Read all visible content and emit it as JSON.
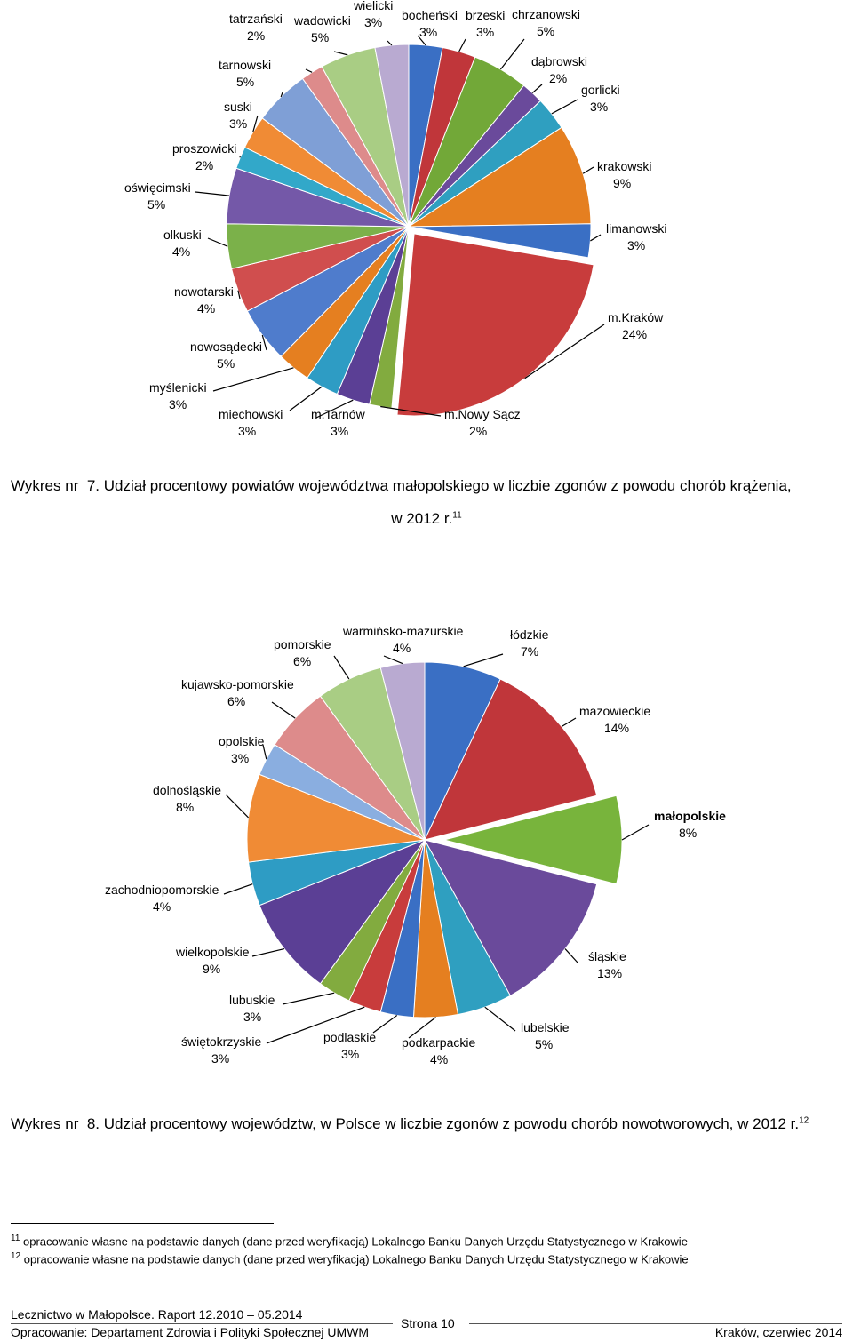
{
  "chart_data": [
    {
      "type": "pie",
      "categories": [
        "bocheński",
        "brzeski",
        "chrzanowski",
        "dąbrowski",
        "gorlicki",
        "krakowski",
        "limanowski",
        "m.Kraków",
        "m.Nowy Sącz",
        "m.Tarnów",
        "miechowski",
        "myślenicki",
        "nowosądecki",
        "nowotarski",
        "olkuski",
        "oświęcimski",
        "proszowicki",
        "suski",
        "tarnowski",
        "tatrzański",
        "wadowicki",
        "wielicki"
      ],
      "values": [
        3,
        3,
        5,
        2,
        3,
        9,
        3,
        24,
        2,
        3,
        3,
        3,
        5,
        4,
        4,
        5,
        2,
        3,
        5,
        2,
        5,
        3
      ],
      "value_labels": [
        "3%",
        "3%",
        "5%",
        "2%",
        "3%",
        "9%",
        "3%",
        "24%",
        "2%",
        "3%",
        "3%",
        "3%",
        "5%",
        "4%",
        "4%",
        "5%",
        "2%",
        "3%",
        "5%",
        "2%",
        "5%",
        "3%"
      ],
      "colors": [
        "#3a6fc4",
        "#c0363a",
        "#72a838",
        "#6a4a9b",
        "#2f9fc0",
        "#e57f20",
        "#3a6fc4",
        "#c83c3c",
        "#82ab3f",
        "#5b3f95",
        "#2e9cc4",
        "#e57f20",
        "#4f7ccc",
        "#d04e4e",
        "#7bb14a",
        "#7458a8",
        "#32a8c9",
        "#f08b35",
        "#7f9fd6",
        "#dd8b8b",
        "#a9cd84",
        "#b9aad1"
      ]
    },
    {
      "type": "pie",
      "categories": [
        "łódzkie",
        "mazowieckie",
        "małopolskie",
        "śląskie",
        "lubelskie",
        "podkarpackie",
        "podlaskie",
        "świętokrzyskie",
        "lubuskie",
        "wielkopolskie",
        "zachodniopomorskie",
        "dolnośląskie",
        "opolskie",
        "kujawsko-pomorskie",
        "pomorskie",
        "warmińsko-mazurskie"
      ],
      "values": [
        7,
        14,
        8,
        13,
        5,
        4,
        3,
        3,
        3,
        9,
        4,
        8,
        3,
        6,
        6,
        4
      ],
      "value_labels": [
        "7%",
        "14%",
        "8%",
        "13%",
        "5%",
        "4%",
        "3%",
        "3%",
        "3%",
        "9%",
        "4%",
        "8%",
        "3%",
        "6%",
        "6%",
        "4%"
      ],
      "colors": [
        "#3a6fc4",
        "#c0363a",
        "#78b43c",
        "#6a4a9b",
        "#2f9fc0",
        "#e57f20",
        "#3a6fc4",
        "#c83c3c",
        "#82ab3f",
        "#5b3f95",
        "#2e9cc4",
        "#f08b35",
        "#8aaee0",
        "#dd8b8b",
        "#a9cd84",
        "#b9aad1"
      ],
      "highlight": "małopolskie"
    }
  ],
  "captions": {
    "c1_lead": "Wykres nr",
    "c1_num": "7.",
    "c1_text": "Udział procentowy powiatów województwa małopolskiego w liczbie zgonów z powodu chorób krążenia,",
    "c1_line2": "w 2012 r.",
    "c1_sup": "11",
    "c2_lead": "Wykres nr",
    "c2_num": "8.",
    "c2_text": "Udział procentowy województw, w Polsce w liczbie zgonów z powodu chorób nowotworowych, w 2012 r.",
    "c2_sup": "12"
  },
  "footnotes": {
    "fn1_num": "11",
    "fn1_text": "opracowanie własne na podstawie danych (dane przed weryfikacją) Lokalnego Banku Danych Urzędu Statystycznego w Krakowie",
    "fn2_num": "12",
    "fn2_text": "opracowanie własne na podstawie danych (dane przed weryfikacją) Lokalnego Banku Danych Urzędu Statystycznego w Krakowie"
  },
  "footer": {
    "left_top": "Lecznictwo w Małopolsce. Raport 12.2010 – 05.2014",
    "left_bottom": "Opracowanie: Departament Zdrowia i Polityki Społecznej UMWM",
    "page": "Strona 10",
    "right": "Kraków, czerwiec 2014"
  }
}
